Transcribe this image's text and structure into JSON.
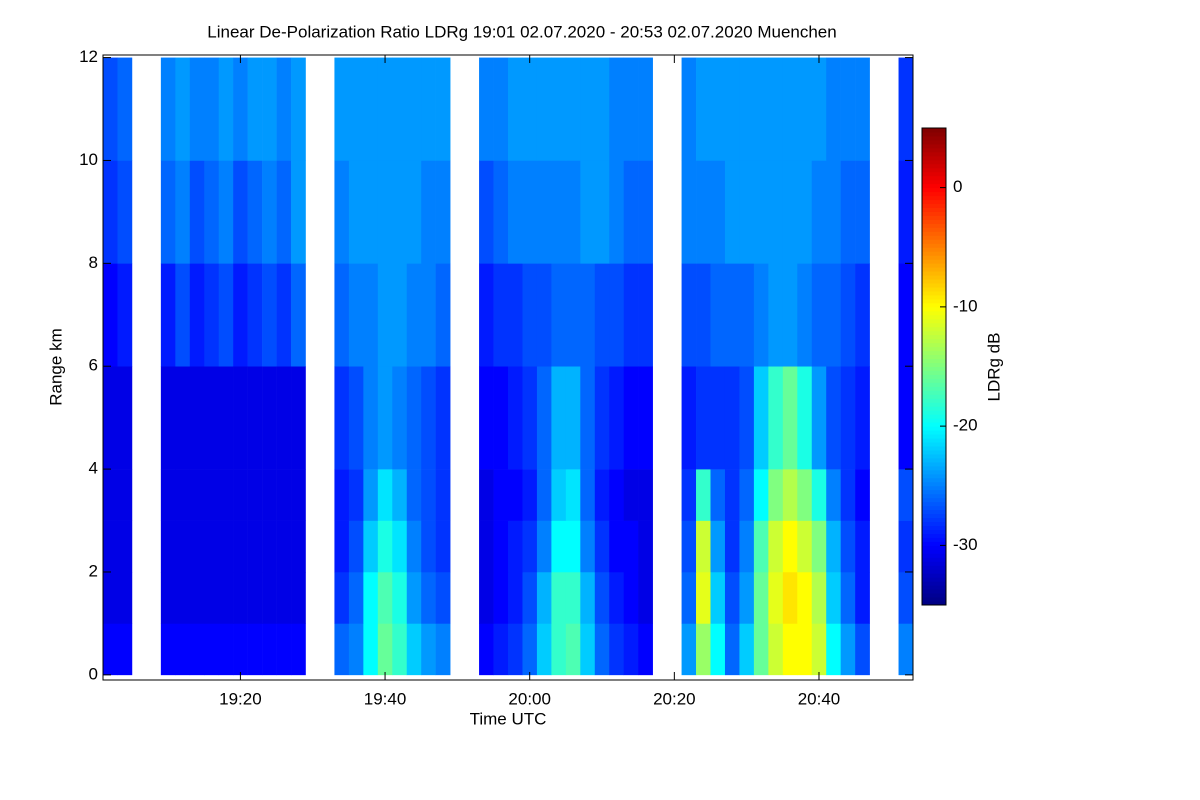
{
  "chart_data": {
    "type": "heatmap",
    "title": "Linear De-Polarization Ratio LDRg   19:01 02.07.2020 - 20:53 02.07.2020 Muenchen",
    "x_label": "Time UTC",
    "y_label": "Range km",
    "colorbar_label": "LDRg dB",
    "colormap": "jet",
    "clim": [
      -35,
      5
    ],
    "colorbar_ticks": [
      0,
      -10,
      -20,
      -30
    ],
    "xlim": [
      1141,
      1253
    ],
    "ylim": [
      -0.1,
      12.05
    ],
    "xticks": [
      {
        "value": 1160,
        "label": "19:20"
      },
      {
        "value": 1180,
        "label": "19:40"
      },
      {
        "value": 1200,
        "label": "20:00"
      },
      {
        "value": 1220,
        "label": "20:20"
      },
      {
        "value": 1240,
        "label": "20:40"
      }
    ],
    "yticks": [
      0,
      2,
      4,
      6,
      8,
      10,
      12
    ],
    "x_edges": [
      1141,
      1143,
      1145,
      1147,
      1149,
      1151,
      1153,
      1155,
      1157,
      1159,
      1161,
      1163,
      1165,
      1167,
      1169,
      1171,
      1173,
      1175,
      1177,
      1179,
      1181,
      1183,
      1185,
      1187,
      1189,
      1191,
      1193,
      1195,
      1197,
      1199,
      1201,
      1203,
      1205,
      1207,
      1209,
      1211,
      1213,
      1215,
      1217,
      1219,
      1221,
      1223,
      1225,
      1227,
      1229,
      1231,
      1233,
      1235,
      1237,
      1239,
      1241,
      1243,
      1245,
      1247,
      1249,
      1251,
      1253
    ],
    "y_edges": [
      0,
      1,
      2,
      3,
      4,
      6,
      8,
      10,
      12
    ],
    "z": [
      [
        -30,
        -30,
        null,
        null,
        -30,
        -30,
        -30,
        -30,
        -30,
        -30,
        -30,
        -30,
        -30,
        -30,
        null,
        null,
        -26,
        -25,
        -20,
        -16,
        -18,
        -22,
        -24,
        -25,
        null,
        null,
        -30,
        -29,
        -28,
        -26,
        -22,
        -18,
        -17,
        -22,
        -26,
        -28,
        -29,
        -30,
        null,
        null,
        -24,
        -14,
        -20,
        -26,
        -22,
        -16,
        -12,
        -10,
        -10,
        -12,
        -20,
        -24,
        -27,
        null,
        null,
        -25
      ],
      [
        -31,
        -31,
        null,
        null,
        -31,
        -31,
        -31,
        -31,
        -31,
        -31,
        -31,
        -31,
        -31,
        -31,
        null,
        null,
        -28,
        -26,
        -20,
        -17,
        -19,
        -24,
        -26,
        -27,
        null,
        null,
        -31,
        -30,
        -29,
        -27,
        -23,
        -18,
        -18,
        -23,
        -27,
        -29,
        -30,
        -31,
        null,
        null,
        -26,
        -11,
        -22,
        -27,
        -24,
        -16,
        -11,
        -9,
        -10,
        -13,
        -22,
        -26,
        -29,
        null,
        null,
        -27
      ],
      [
        -31,
        -31,
        null,
        null,
        -31,
        -31,
        -31,
        -31,
        -31,
        -31,
        -31,
        -31,
        -31,
        -31,
        null,
        null,
        -29,
        -27,
        -22,
        -19,
        -21,
        -25,
        -27,
        -28,
        null,
        null,
        -31,
        -30,
        -29,
        -28,
        -25,
        -20,
        -20,
        -25,
        -28,
        -30,
        -30,
        -31,
        null,
        null,
        -27,
        -12,
        -24,
        -28,
        -25,
        -17,
        -12,
        -10,
        -12,
        -15,
        -23,
        -27,
        -29,
        null,
        null,
        -28
      ],
      [
        -31,
        -31,
        null,
        null,
        -31,
        -31,
        -31,
        -31,
        -31,
        -31,
        -31,
        -31,
        -31,
        -31,
        null,
        null,
        -29,
        -28,
        -24,
        -21,
        -23,
        -26,
        -27,
        -28,
        null,
        null,
        -31,
        -30,
        -30,
        -29,
        -26,
        -22,
        -21,
        -26,
        -29,
        -30,
        -31,
        -31,
        null,
        null,
        -28,
        -18,
        -26,
        -28,
        -26,
        -20,
        -15,
        -13,
        -15,
        -19,
        -25,
        -28,
        -30,
        null,
        null,
        -27
      ],
      [
        -31,
        -31,
        null,
        null,
        -31,
        -31,
        -31,
        -31,
        -31,
        -31,
        -31,
        -31,
        -31,
        -31,
        null,
        null,
        -28,
        -27,
        -25,
        -24,
        -25,
        -26,
        -27,
        -28,
        null,
        null,
        -30,
        -30,
        -29,
        -28,
        -26,
        -23,
        -23,
        -26,
        -28,
        -29,
        -30,
        -30,
        null,
        null,
        -29,
        -28,
        -28,
        -28,
        -27,
        -22,
        -18,
        -16,
        -19,
        -24,
        -27,
        -28,
        -29,
        null,
        null,
        -30
      ],
      [
        -30,
        -29,
        null,
        null,
        -29,
        -27,
        -29,
        -28,
        -27,
        -29,
        -28,
        -27,
        -28,
        -26,
        null,
        null,
        -26,
        -25,
        -25,
        -24,
        -24,
        -25,
        -25,
        -26,
        null,
        null,
        -29,
        -28,
        -28,
        -27,
        -27,
        -26,
        -26,
        -26,
        -27,
        -27,
        -28,
        -28,
        null,
        null,
        -27,
        -27,
        -26,
        -26,
        -26,
        -25,
        -24,
        -24,
        -25,
        -26,
        -26,
        -27,
        -28,
        null,
        null,
        -30
      ],
      [
        -28,
        -27,
        null,
        null,
        -26,
        -25,
        -27,
        -26,
        -25,
        -27,
        -26,
        -25,
        -26,
        -24,
        null,
        null,
        -25,
        -24,
        -24,
        -24,
        -24,
        -24,
        -25,
        -25,
        null,
        null,
        -27,
        -26,
        -25,
        -25,
        -25,
        -25,
        -25,
        -24,
        -24,
        -25,
        -26,
        -26,
        null,
        null,
        -25,
        -25,
        -25,
        -24,
        -24,
        -24,
        -24,
        -24,
        -24,
        -25,
        -25,
        -26,
        -26,
        null,
        null,
        -29
      ],
      [
        -27,
        -26,
        null,
        null,
        -25,
        -24,
        -25,
        -25,
        -24,
        -25,
        -24,
        -24,
        -25,
        -24,
        null,
        null,
        -24,
        -24,
        -24,
        -24,
        -24,
        -24,
        -24,
        -24,
        null,
        null,
        -25,
        -25,
        -24,
        -24,
        -24,
        -24,
        -24,
        -24,
        -24,
        -25,
        -25,
        -25,
        null,
        null,
        -25,
        -24,
        -24,
        -24,
        -24,
        -24,
        -24,
        -24,
        -24,
        -24,
        -25,
        -25,
        -25,
        null,
        null,
        -28
      ]
    ]
  }
}
